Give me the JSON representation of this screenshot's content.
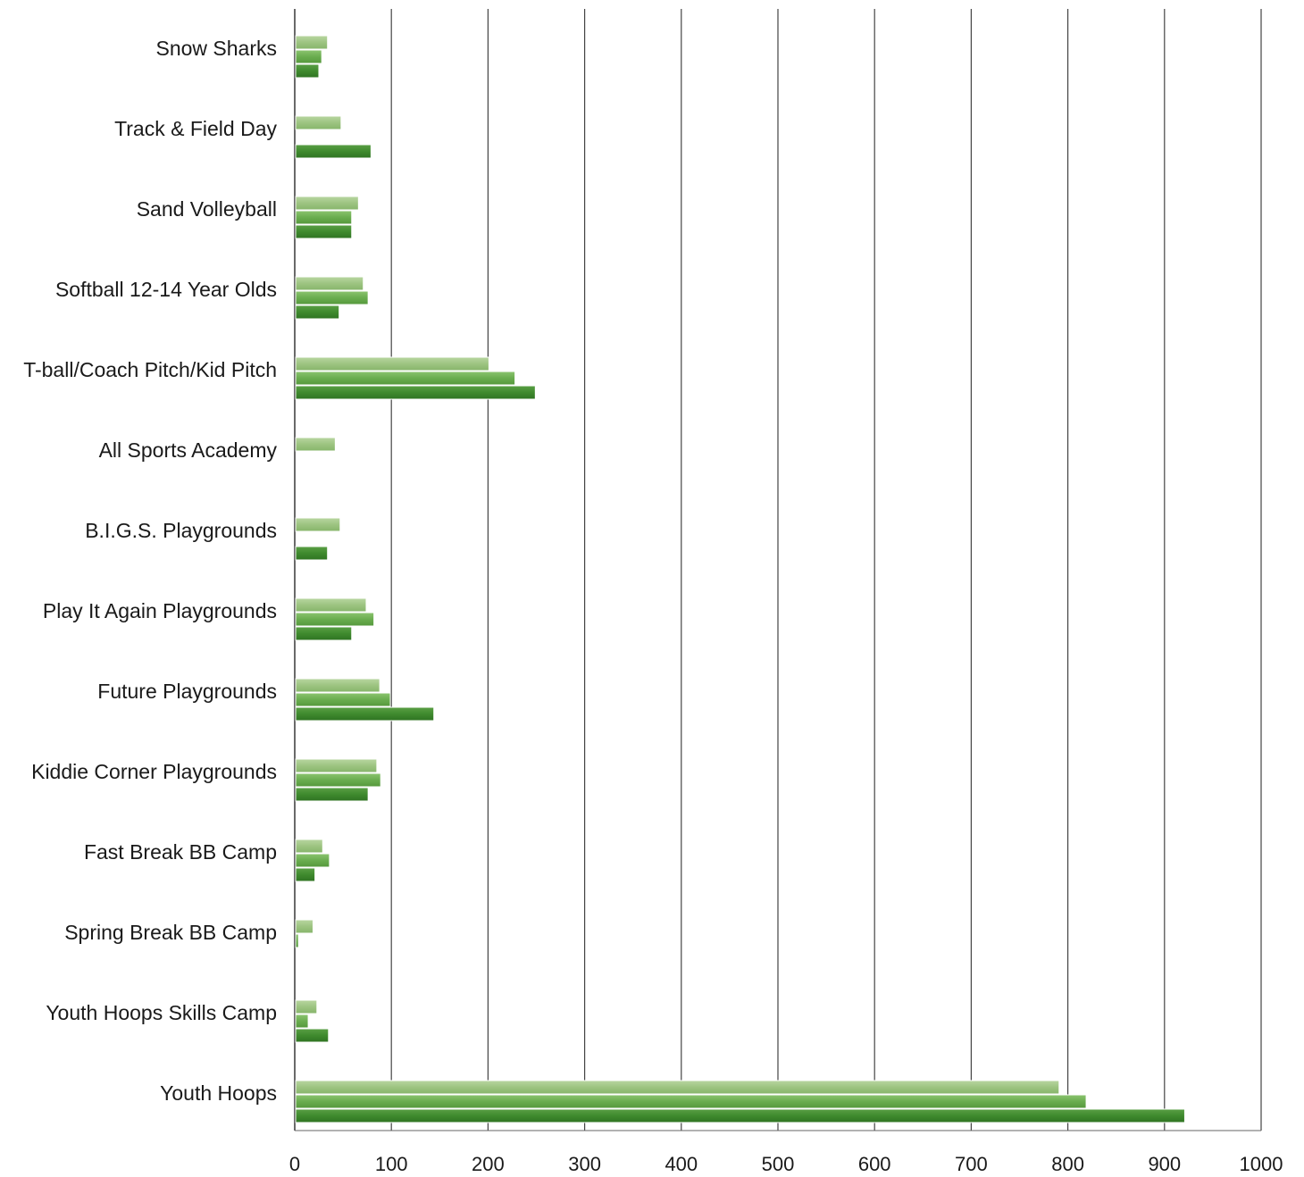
{
  "chart_data": {
    "type": "bar",
    "orientation": "horizontal",
    "title": "",
    "xlabel": "",
    "ylabel": "",
    "xlim": [
      0,
      1000
    ],
    "x_ticks": [
      "0",
      "100",
      "200",
      "300",
      "400",
      "500",
      "600",
      "700",
      "800",
      "900",
      "1000"
    ],
    "grid": "vertical",
    "legend": "none",
    "categories": [
      "Snow Sharks",
      "Track & Field Day",
      "Sand Volleyball",
      "Softball 12-14 Year Olds",
      "T-ball/Coach Pitch/Kid Pitch",
      "All Sports Academy",
      "B.I.G.S. Playgrounds",
      "Play It Again Playgrounds",
      "Future Playgrounds",
      "Kiddie Corner Playgrounds",
      "Fast Break BB Camp",
      "Spring Break BB Camp",
      "Youth Hoops Skills Camp",
      "Youth Hoops"
    ],
    "series": [
      {
        "values": [
          33,
          47,
          65,
          70,
          200,
          41,
          46,
          73,
          87,
          84,
          28,
          18,
          22,
          790
        ],
        "color": "#9dc481"
      },
      {
        "values": [
          27,
          null,
          58,
          75,
          227,
          null,
          null,
          81,
          98,
          88,
          35,
          3,
          13,
          818
        ],
        "color": "#6aad4f"
      },
      {
        "values": [
          24,
          78,
          58,
          45,
          248,
          null,
          33,
          58,
          143,
          75,
          20,
          null,
          34,
          920
        ],
        "color": "#3f8a2e"
      }
    ]
  }
}
